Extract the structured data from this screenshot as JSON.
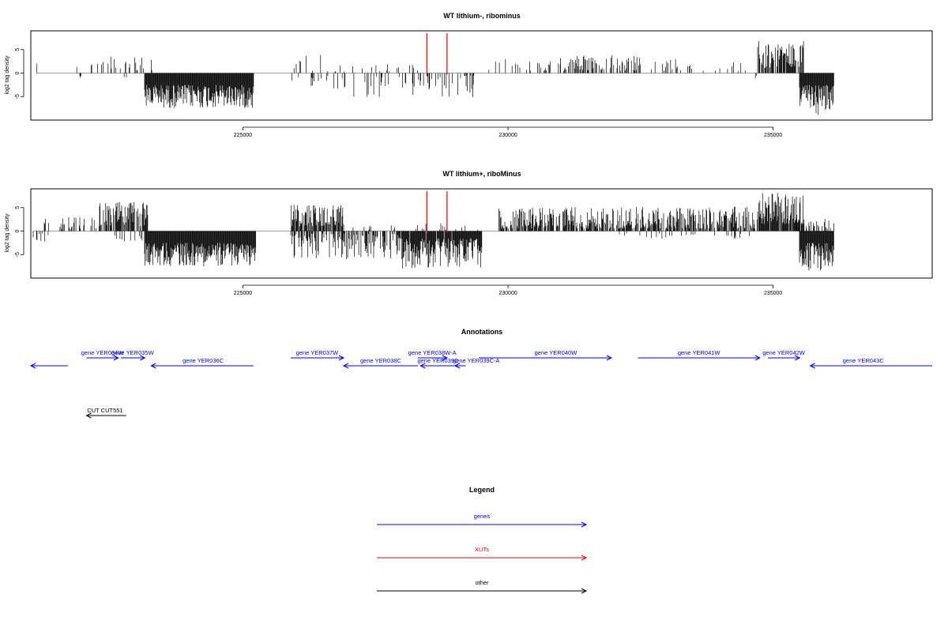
{
  "chart_data": [
    {
      "type": "bar",
      "title": "WT lithium-, ribominus",
      "xlabel": "",
      "ylabel": "log2 tag density",
      "xlim": [
        221000,
        238000
      ],
      "ylim": [
        -10,
        9
      ],
      "xticks": [
        225000,
        230000,
        235000
      ],
      "yticks": [
        -5,
        0,
        5
      ],
      "grid": false,
      "colors": {
        "bars": "#000000",
        "markers": "#ff0000",
        "baseline": "#808080"
      },
      "markers_x": [
        228470,
        228850
      ],
      "segments": [
        {
          "from": 221110,
          "to": 221130,
          "sign": 1,
          "min": 0.5,
          "max": 3.2,
          "density": 0.6
        },
        {
          "from": 221700,
          "to": 222200,
          "sign": 1,
          "min": 0.4,
          "max": 2.8,
          "density": 0.15
        },
        {
          "from": 221900,
          "to": 222000,
          "sign": -1,
          "min": 0.5,
          "max": 1.3,
          "density": 0.2
        },
        {
          "from": 222200,
          "to": 223300,
          "sign": 1,
          "min": 0.4,
          "max": 3.8,
          "density": 0.25
        },
        {
          "from": 222600,
          "to": 222900,
          "sign": -1,
          "min": 0.5,
          "max": 1.6,
          "density": 0.1
        },
        {
          "from": 223150,
          "to": 225200,
          "sign": -1,
          "min": 2.5,
          "max": 7.5,
          "density": 1.0
        },
        {
          "from": 225900,
          "to": 226600,
          "sign": 1,
          "min": 0.4,
          "max": 4.0,
          "density": 0.12
        },
        {
          "from": 225900,
          "to": 226600,
          "sign": -1,
          "min": 0.5,
          "max": 3.0,
          "density": 0.1
        },
        {
          "from": 226700,
          "to": 228300,
          "sign": 1,
          "min": 0.3,
          "max": 2.2,
          "density": 0.1
        },
        {
          "from": 226700,
          "to": 229400,
          "sign": -1,
          "min": 0.5,
          "max": 5.5,
          "density": 0.2
        },
        {
          "from": 229600,
          "to": 231000,
          "sign": 1,
          "min": 0.4,
          "max": 3.0,
          "density": 0.12
        },
        {
          "from": 230600,
          "to": 232500,
          "sign": 1,
          "min": 0.5,
          "max": 3.8,
          "density": 0.35
        },
        {
          "from": 232500,
          "to": 234500,
          "sign": 1,
          "min": 0.4,
          "max": 3.0,
          "density": 0.15
        },
        {
          "from": 234600,
          "to": 234700,
          "sign": -1,
          "min": 0.5,
          "max": 1.6,
          "density": 0.3
        },
        {
          "from": 234700,
          "to": 235600,
          "sign": 1,
          "min": 1.0,
          "max": 7.0,
          "density": 0.7
        },
        {
          "from": 235500,
          "to": 236150,
          "sign": -1,
          "min": 2.5,
          "max": 9.0,
          "density": 1.0
        }
      ]
    },
    {
      "type": "bar",
      "title": "WT lithium+, riboMinus",
      "xlabel": "",
      "ylabel": "log2 tag density",
      "xlim": [
        221000,
        238000
      ],
      "ylim": [
        -10,
        9
      ],
      "xticks": [
        225000,
        230000,
        235000
      ],
      "yticks": [
        -5,
        0,
        5
      ],
      "grid": false,
      "colors": {
        "bars": "#000000",
        "markers": "#ff0000",
        "baseline": "#808080"
      },
      "markers_x": [
        228470,
        228850
      ],
      "segments": [
        {
          "from": 221050,
          "to": 221350,
          "sign": -1,
          "min": 0.5,
          "max": 2.8,
          "density": 0.35
        },
        {
          "from": 221250,
          "to": 221350,
          "sign": 1,
          "min": 0.5,
          "max": 2.8,
          "density": 0.3
        },
        {
          "from": 221500,
          "to": 222300,
          "sign": 1,
          "min": 0.5,
          "max": 3.0,
          "density": 0.35
        },
        {
          "from": 222300,
          "to": 223200,
          "sign": 1,
          "min": 1.0,
          "max": 6.2,
          "density": 0.75
        },
        {
          "from": 222500,
          "to": 223200,
          "sign": -1,
          "min": 0.5,
          "max": 2.5,
          "density": 0.12
        },
        {
          "from": 223150,
          "to": 225250,
          "sign": -1,
          "min": 2.5,
          "max": 7.5,
          "density": 1.0
        },
        {
          "from": 225900,
          "to": 226900,
          "sign": 1,
          "min": 1.0,
          "max": 5.8,
          "density": 0.8
        },
        {
          "from": 225900,
          "to": 228000,
          "sign": -1,
          "min": 0.5,
          "max": 6.0,
          "density": 0.55
        },
        {
          "from": 226900,
          "to": 228000,
          "sign": 1,
          "min": 0.3,
          "max": 1.5,
          "density": 0.08
        },
        {
          "from": 228000,
          "to": 229500,
          "sign": -1,
          "min": 1.5,
          "max": 8.0,
          "density": 0.95
        },
        {
          "from": 228100,
          "to": 229500,
          "sign": 1,
          "min": 0.3,
          "max": 1.8,
          "density": 0.1
        },
        {
          "from": 229800,
          "to": 234700,
          "sign": 1,
          "min": 0.5,
          "max": 5.2,
          "density": 0.7
        },
        {
          "from": 232000,
          "to": 234600,
          "sign": -1,
          "min": 0.5,
          "max": 1.6,
          "density": 0.1
        },
        {
          "from": 234700,
          "to": 235600,
          "sign": 1,
          "min": 1.5,
          "max": 8.2,
          "density": 0.9
        },
        {
          "from": 235500,
          "to": 236150,
          "sign": -1,
          "min": 2.5,
          "max": 8.5,
          "density": 1.0
        },
        {
          "from": 235400,
          "to": 236150,
          "sign": 1,
          "min": 0.5,
          "max": 2.8,
          "density": 0.35
        }
      ]
    }
  ],
  "annotations": {
    "title": "Annotations",
    "features": [
      {
        "label": "",
        "start": 221000,
        "end": 221700,
        "strand": "-",
        "row": 1,
        "type": "gene",
        "label_x": 221350
      },
      {
        "label": "gene YER034W",
        "start": 222050,
        "end": 222650,
        "strand": "+",
        "row": 0,
        "type": "gene",
        "label_x": 222350
      },
      {
        "label": "gene YER035W",
        "start": 222700,
        "end": 223150,
        "strand": "+",
        "row": 0,
        "type": "gene",
        "label_x": 222920
      },
      {
        "label": "gene YER036C",
        "start": 223270,
        "end": 225200,
        "strand": "-",
        "row": 1,
        "type": "gene",
        "label_x": 224250
      },
      {
        "label": "gene YER037W",
        "start": 225900,
        "end": 226900,
        "strand": "+",
        "row": 0,
        "type": "gene",
        "label_x": 226400
      },
      {
        "label": "gene YER038C",
        "start": 226900,
        "end": 228300,
        "strand": "-",
        "row": 1,
        "type": "gene",
        "label_x": 227600
      },
      {
        "label": "gene YER038W-A",
        "start": 228300,
        "end": 228850,
        "strand": "+",
        "row": 0,
        "type": "gene",
        "label_x": 228570
      },
      {
        "label": "gene YER039C",
        "start": 228350,
        "end": 229000,
        "strand": "-",
        "row": 1,
        "type": "gene",
        "label_x": 228680
      },
      {
        "label": "gene YER039C-A",
        "start": 229000,
        "end": 229200,
        "strand": "-",
        "row": 1,
        "type": "gene",
        "label_x": 229400
      },
      {
        "label": "gene YER040W",
        "start": 229450,
        "end": 231950,
        "strand": "+",
        "row": 0,
        "type": "gene",
        "label_x": 230900
      },
      {
        "label": "gene YER041W",
        "start": 232450,
        "end": 234750,
        "strand": "+",
        "row": 0,
        "type": "gene",
        "label_x": 233600
      },
      {
        "label": "gene YER042W",
        "start": 234900,
        "end": 235500,
        "strand": "+",
        "row": 0,
        "type": "gene",
        "label_x": 235200
      },
      {
        "label": "gene YER043C",
        "start": 235700,
        "end": 238000,
        "strand": "-",
        "row": 1,
        "type": "gene",
        "label_x": 236700
      },
      {
        "label": "CUT CUT551",
        "start": 222050,
        "end": 222800,
        "strand": "-",
        "row": 2,
        "type": "other",
        "label_x": 222400
      }
    ]
  },
  "legend": {
    "title": "Legend",
    "items": [
      {
        "label": "genes",
        "color": "#0000ff"
      },
      {
        "label": "XUTs",
        "color": "#ff0000"
      },
      {
        "label": "other",
        "color": "#000000"
      }
    ]
  }
}
